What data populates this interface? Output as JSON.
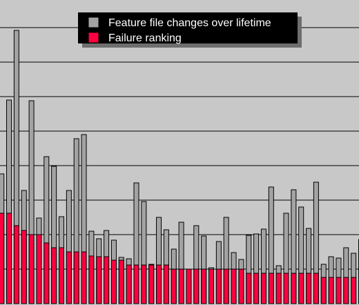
{
  "chart_data": {
    "type": "bar",
    "grid": true,
    "legend_position": "top-center",
    "ylim": [
      0,
      440
    ],
    "series": [
      {
        "name": "Feature file changes over lifetime",
        "color": "#a3a3a3",
        "values": [
          188,
          295,
          396,
          164,
          294,
          124,
          213,
          199,
          126,
          164,
          239,
          245,
          105,
          94,
          106,
          92,
          67,
          65,
          175,
          148,
          57,
          125,
          107,
          79,
          118,
          35,
          113,
          98,
          52,
          90,
          125,
          74,
          64,
          99,
          101,
          108,
          169,
          55,
          131,
          165,
          140,
          109,
          176,
          57,
          68,
          66,
          81,
          73,
          93
        ]
      },
      {
        "name": "Failure ranking",
        "color": "#ff0040",
        "values": [
          131,
          131,
          113,
          106,
          100,
          100,
          88,
          81,
          81,
          75,
          75,
          75,
          69,
          68,
          68,
          63,
          63,
          56,
          56,
          56,
          56,
          56,
          56,
          50,
          50,
          50,
          50,
          50,
          50,
          50,
          50,
          50,
          50,
          44,
          44,
          44,
          44,
          44,
          44,
          44,
          44,
          44,
          44,
          38,
          38,
          38,
          38,
          38,
          38
        ]
      }
    ]
  }
}
